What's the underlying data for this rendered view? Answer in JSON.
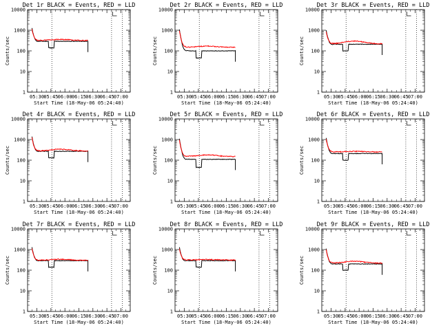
{
  "chart_data": {
    "type": "line",
    "ylabel": "Counts/sec",
    "xlabel": "Start Time (18-May-06 05:24:40)",
    "yscale": "log",
    "ylim": [
      1,
      10000
    ],
    "yticks": [
      "1",
      "10",
      "100",
      "1000",
      "10000"
    ],
    "xlim_minutes": [
      -4.7,
      105.3
    ],
    "xticks": [
      "05:30",
      "05:45",
      "06:00",
      "06:15",
      "06:30",
      "06:45",
      "07:00"
    ],
    "xtick_minutes": [
      5.3,
      20.3,
      35.3,
      50.3,
      65.3,
      80.3,
      95.3
    ],
    "vlines_minutes": [
      21.3,
      85.3,
      96.8
    ],
    "colors": {
      "events": "#000000",
      "lld": "#ff0000"
    },
    "panels": [
      {
        "title": "Det 1r BLACK = Events, RED = LLD",
        "peak": 1300,
        "events_plateau": 290,
        "events_dip": 140,
        "lld_plateau": 320,
        "lld_peak": 360
      },
      {
        "title": "Det 2r BLACK = Events, RED = LLD",
        "peak": 1100,
        "events_plateau": 100,
        "events_dip": 45,
        "lld_plateau": 150,
        "lld_peak": 170
      },
      {
        "title": "Det 3r BLACK = Events, RED = LLD",
        "peak": 1000,
        "events_plateau": 210,
        "events_dip": 100,
        "lld_plateau": 220,
        "lld_peak": 300
      },
      {
        "title": "Det 4r BLACK = Events, RED = LLD",
        "peak": 1400,
        "events_plateau": 270,
        "events_dip": 130,
        "lld_plateau": 280,
        "lld_peak": 340
      },
      {
        "title": "Det 5r BLACK = Events, RED = LLD",
        "peak": 1100,
        "events_plateau": 110,
        "events_dip": 45,
        "lld_plateau": 150,
        "lld_peak": 180
      },
      {
        "title": "Det 6r BLACK = Events, RED = LLD",
        "peak": 1200,
        "events_plateau": 210,
        "events_dip": 100,
        "lld_plateau": 250,
        "lld_peak": 270
      },
      {
        "title": "Det 7r BLACK = Events, RED = LLD",
        "peak": 1300,
        "events_plateau": 290,
        "events_dip": 140,
        "lld_plateau": 300,
        "lld_peak": 340
      },
      {
        "title": "Det 8r BLACK = Events, RED = LLD",
        "peak": 1300,
        "events_plateau": 290,
        "events_dip": 140,
        "lld_plateau": 310,
        "lld_peak": 330
      },
      {
        "title": "Det 9r BLACK = Events, RED = LLD",
        "peak": 1100,
        "events_plateau": 200,
        "events_dip": 100,
        "lld_plateau": 220,
        "lld_peak": 270
      }
    ]
  }
}
